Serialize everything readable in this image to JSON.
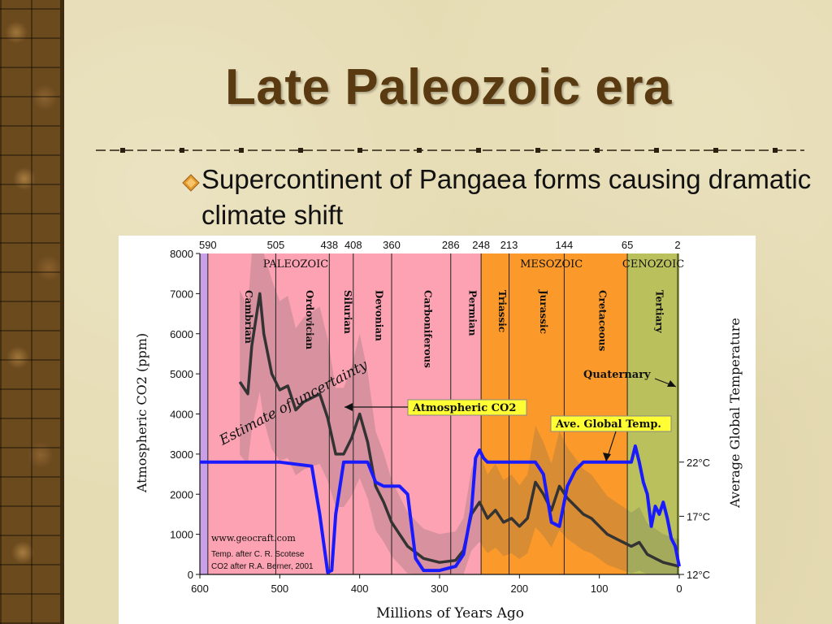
{
  "slide": {
    "title": "Late Paleozoic era",
    "bullet": "Supercontinent of Pangaea forms causing dramatic climate shift"
  },
  "colors": {
    "title": "#5a3a10",
    "paleozoic_band": "#fca2b2",
    "mesozoic_band": "#fb9a2a",
    "cenozoic_band": "#b9c05c",
    "co2_line": "#333333",
    "temp_line": "#1a1aff",
    "label_box": "#ffff33"
  },
  "chart_data": {
    "type": "line",
    "xlabel": "Millions of Years Ago",
    "ylabel": "Atmospheric CO2 (ppm)",
    "y2label": "Average Global Temperature",
    "xlim": [
      600,
      0
    ],
    "ylim": [
      0,
      8000
    ],
    "x_ticks": [
      "600",
      "500",
      "400",
      "300",
      "200",
      "100",
      "0"
    ],
    "y_ticks": [
      "0",
      "1000",
      "2000",
      "3000",
      "4000",
      "5000",
      "6000",
      "7000",
      "8000"
    ],
    "y2_ticks": [
      {
        "label": "22°C",
        "ppm": 2800
      },
      {
        "label": "17°C",
        "ppm": 1450
      },
      {
        "label": "12°C",
        "ppm": 0
      }
    ],
    "top_boundaries": [
      "590",
      "505",
      "438",
      "408",
      "360",
      "286",
      "248",
      "213",
      "144",
      "65",
      "2"
    ],
    "boundary_values": [
      590,
      505,
      438,
      408,
      360,
      286,
      248,
      213,
      144,
      65,
      2
    ],
    "eras": [
      {
        "name": "PALEOZOIC",
        "from": 590,
        "to": 248
      },
      {
        "name": "MESOZOIC",
        "from": 248,
        "to": 65
      },
      {
        "name": "CENOZOIC",
        "from": 65,
        "to": 0
      }
    ],
    "periods": [
      {
        "name": "Cambrian",
        "mid": 547
      },
      {
        "name": "Ordovician",
        "mid": 471
      },
      {
        "name": "Silurian",
        "mid": 423
      },
      {
        "name": "Devonian",
        "mid": 384
      },
      {
        "name": "Carboniferous",
        "mid": 323
      },
      {
        "name": "Permian",
        "mid": 267
      },
      {
        "name": "Triassic",
        "mid": 230
      },
      {
        "name": "Jurassic",
        "mid": 178
      },
      {
        "name": "Cretaceous",
        "mid": 104
      },
      {
        "name": "Tertiary",
        "mid": 33
      }
    ],
    "quaternary_label": "Quaternary",
    "series": [
      {
        "name": "Atmospheric CO2",
        "x": [
          550,
          540,
          535,
          525,
          520,
          510,
          500,
          490,
          480,
          470,
          460,
          450,
          440,
          430,
          420,
          410,
          400,
          390,
          380,
          370,
          360,
          340,
          320,
          300,
          280,
          270,
          260,
          250,
          240,
          230,
          220,
          210,
          200,
          190,
          180,
          170,
          160,
          150,
          140,
          130,
          120,
          110,
          100,
          90,
          80,
          70,
          60,
          50,
          40,
          30,
          20,
          10,
          0
        ],
        "y": [
          4800,
          4500,
          5700,
          7000,
          6000,
          5000,
          4600,
          4700,
          4100,
          4300,
          4400,
          4500,
          3900,
          3000,
          3000,
          3400,
          4000,
          3300,
          2200,
          1800,
          1300,
          700,
          400,
          300,
          350,
          600,
          1500,
          1800,
          1400,
          1600,
          1300,
          1400,
          1200,
          1400,
          2300,
          2000,
          1600,
          2200,
          1900,
          1700,
          1500,
          1400,
          1200,
          1000,
          900,
          800,
          700,
          800,
          500,
          400,
          300,
          250,
          200
        ]
      },
      {
        "name": "Ave. Global Temp.",
        "x": [
          600,
          500,
          460,
          450,
          440,
          435,
          430,
          420,
          400,
          390,
          380,
          370,
          360,
          350,
          340,
          330,
          320,
          310,
          300,
          290,
          280,
          270,
          260,
          255,
          250,
          245,
          240,
          200,
          180,
          170,
          160,
          150,
          140,
          130,
          120,
          110,
          100,
          90,
          80,
          70,
          60,
          55,
          50,
          45,
          40,
          35,
          30,
          25,
          20,
          15,
          10,
          5,
          0
        ],
        "y": [
          2800,
          2800,
          2700,
          1500,
          50,
          100,
          1500,
          2800,
          2800,
          2800,
          2300,
          2200,
          2200,
          2200,
          2000,
          400,
          100,
          100,
          100,
          150,
          200,
          500,
          1600,
          2900,
          3100,
          2900,
          2800,
          2800,
          2800,
          2500,
          1300,
          1200,
          2200,
          2600,
          2800,
          2800,
          2800,
          2800,
          2800,
          2800,
          2800,
          3200,
          2800,
          2300,
          2000,
          1200,
          1700,
          1500,
          1800,
          1400,
          900,
          700,
          200
        ]
      }
    ],
    "annotations": {
      "co2_label": "Atmospheric CO2",
      "temp_label": "Ave. Global Temp.",
      "uncertainty": "Estimate of uncertainty"
    },
    "credits": {
      "site": "www.geocraft.com",
      "line1": "Temp. after C. R. Scotese",
      "line2": "CO2 after R.A. Berner, 2001"
    }
  }
}
